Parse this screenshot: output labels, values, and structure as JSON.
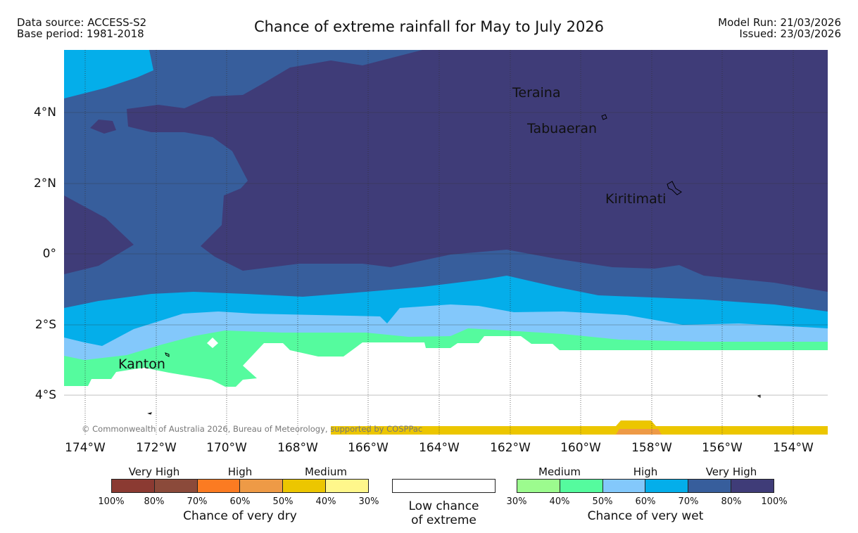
{
  "header": {
    "data_source": "Data source: ACCESS-S2",
    "base_period": "Base period: 1981-2018",
    "title": "Chance of extreme rainfall for May to July 2026",
    "model_run": "Model Run: 21/03/2026",
    "issued": "Issued: 23/03/2026"
  },
  "map": {
    "lat_labels": [
      "4°N",
      "2°N",
      "0°",
      "2°S",
      "4°S"
    ],
    "lon_labels": [
      "174°W",
      "172°W",
      "170°W",
      "168°W",
      "166°W",
      "164°W",
      "162°W",
      "160°W",
      "158°W",
      "156°W",
      "154°W"
    ],
    "places": {
      "teraina": "Teraina",
      "tabuaeran": "Tabuaeran",
      "kiritimati": "Kiritimati",
      "kanton": "Kanton"
    },
    "copyright": "© Commonwealth of Australia 2026, Bureau of Meteorology, supported by COSPPac"
  },
  "legend": {
    "dry": {
      "heads": [
        "Very High",
        "High",
        "Medium"
      ],
      "ticks": [
        "100%",
        "80%",
        "70%",
        "60%",
        "50%",
        "40%",
        "30%"
      ],
      "colors": [
        "#8b3a32",
        "#8b4a3a",
        "#fb7b22",
        "#ee9a46",
        "#ecc600",
        "#fff78b"
      ],
      "title": "Chance of very dry"
    },
    "low": {
      "line1": "Low chance",
      "line2": "of extreme",
      "color": "#ffffff"
    },
    "wet": {
      "heads": [
        "Medium",
        "High",
        "Very High"
      ],
      "ticks": [
        "30%",
        "40%",
        "50%",
        "60%",
        "70%",
        "80%",
        "100%"
      ],
      "colors": [
        "#9cfb8e",
        "#55fb9e",
        "#83c8fb",
        "#04aeea",
        "#375e9c",
        "#3f3c78"
      ],
      "title": "Chance of very wet"
    }
  }
}
